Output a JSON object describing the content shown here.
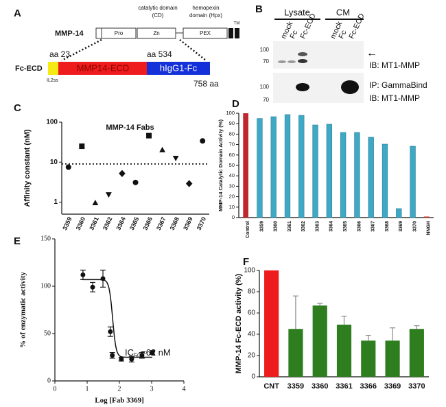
{
  "diagram_a": {
    "panel": "A",
    "protein": "MMP-14",
    "cd_label": [
      "catalytic domain",
      "(CD)"
    ],
    "hpx_label": [
      "hemopexin",
      "domain (Hpx)"
    ],
    "tm": "TM",
    "domains": [
      "Pro",
      "Zn",
      "PEX"
    ],
    "start": "aa 23",
    "end": "aa 534",
    "construct": "Fc-ECD",
    "ecd": "MMP14-ECD",
    "fc": "hIgG1-Fc",
    "signal": "IL2ss",
    "length": "758 aa"
  },
  "blot_b": {
    "panel": "B",
    "groups": [
      "Lysate",
      "CM"
    ],
    "lanes": [
      "mock",
      "Fc",
      "Fc-ECD",
      "mock",
      "Fc",
      "Fc-ECD"
    ],
    "top_markers": [
      100,
      70
    ],
    "arrow": "←",
    "top_caption": "IB: MT1-MMP",
    "bottom_markers": [
      100,
      70
    ],
    "bottom_caption": [
      "IP: GammaBind",
      "IB: MT1-MMP"
    ]
  },
  "chart_data": [
    {
      "type": "scatter",
      "panel": "C",
      "title": "MMP-14 Fabs",
      "ylabel": "Affinity constant (nM)",
      "categories": [
        "3359",
        "3360",
        "3361",
        "3362",
        "3364",
        "3365",
        "3366",
        "3367",
        "3368",
        "3369",
        "3370"
      ],
      "values": [
        7.5,
        25,
        0.95,
        1.55,
        5.2,
        3.1,
        46,
        20,
        12.7,
        2.9,
        34
      ],
      "markers": [
        "circle",
        "square",
        "triangle",
        "triangle-down",
        "diamond",
        "circle",
        "square",
        "triangle",
        "triangle-down",
        "diamond",
        "circle"
      ],
      "color": "#111111",
      "log_y": true,
      "ylim": [
        0.5,
        100
      ],
      "yticks": [
        1,
        10,
        100
      ],
      "reference_line": 9
    },
    {
      "type": "bar",
      "panel": "D",
      "ylabel": "MMP-14 Catalytic Domain Activity (%)",
      "categories": [
        "Control",
        "3359",
        "3360",
        "3361",
        "3362",
        "3363",
        "3364",
        "3365",
        "3366",
        "3367",
        "3368",
        "3369",
        "3370",
        "NNGH"
      ],
      "values": [
        100,
        95,
        96.7,
        98.7,
        98,
        88.8,
        89.5,
        81.6,
        81.6,
        77,
        70.4,
        8.6,
        68.4,
        1
      ],
      "colors": [
        "#c0282e",
        "#3fa8c4",
        "#3fa8c4",
        "#3fa8c4",
        "#3fa8c4",
        "#3fa8c4",
        "#3fa8c4",
        "#3fa8c4",
        "#3fa8c4",
        "#3fa8c4",
        "#3fa8c4",
        "#3fa8c4",
        "#3fa8c4",
        "#d9342b"
      ],
      "ylim": [
        0,
        100
      ],
      "yticks": [
        0,
        10,
        20,
        30,
        40,
        50,
        60,
        70,
        80,
        90,
        100
      ]
    },
    {
      "type": "scatter",
      "panel": "E",
      "ylabel": "% of enzymatic activity",
      "xlabel": "Log [Fab 3369]",
      "x": [
        0.87,
        1.17,
        1.49,
        1.72,
        1.78,
        2.06,
        2.38,
        2.7,
        3.02
      ],
      "values": [
        112,
        99,
        108,
        52,
        27,
        23,
        23,
        27,
        30
      ],
      "errors": [
        5,
        5,
        9,
        5,
        3,
        2,
        3,
        3,
        2
      ],
      "fit_curve": {
        "top": 107,
        "bottom": 25,
        "log_ic50": 1.79,
        "hill": 8
      },
      "annotation": {
        "text": "IC",
        "subscript": "50",
        "suffix": "=62 nM"
      },
      "color": "#111111",
      "xlim": [
        0,
        4
      ],
      "xticks": [
        0,
        1,
        2,
        3,
        4
      ],
      "ylim": [
        0,
        150
      ],
      "yticks": [
        0,
        50,
        100,
        150
      ]
    },
    {
      "type": "bar",
      "panel": "F",
      "ylabel": "MMP-14 Fc-ECD activity (%)",
      "categories": [
        "CNT",
        "3359",
        "3360",
        "3361",
        "3366",
        "3369",
        "3370"
      ],
      "values": [
        100,
        45,
        67,
        49,
        34,
        34,
        45
      ],
      "errors": [
        null,
        31,
        2,
        8,
        5,
        12,
        3
      ],
      "colors": [
        "#ee1c1c",
        "#2e7d1f",
        "#2e7d1f",
        "#2e7d1f",
        "#2e7d1f",
        "#2e7d1f",
        "#2e7d1f"
      ],
      "ylim": [
        0,
        100
      ],
      "yticks": [
        0,
        20,
        40,
        60,
        80,
        100
      ]
    }
  ]
}
